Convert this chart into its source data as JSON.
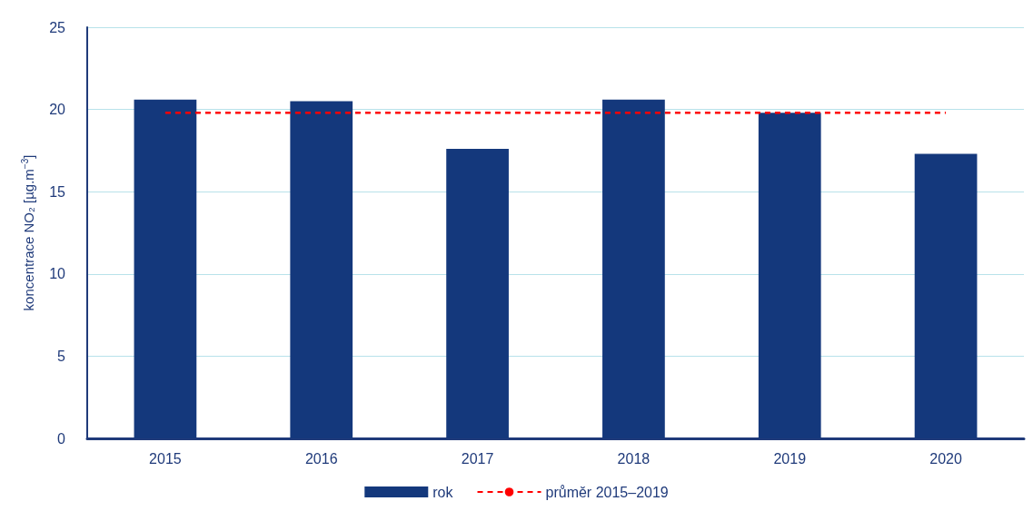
{
  "chart_data": {
    "type": "bar",
    "ylabel": "koncentrace NO₂ [µg.m$^{−3}$]",
    "categories": [
      "2015",
      "2016",
      "2017",
      "2018",
      "2019",
      "2020"
    ],
    "series": [
      {
        "name": "rok",
        "color": "#14387c",
        "values": [
          20.6,
          20.5,
          17.6,
          20.6,
          19.8,
          17.3
        ]
      },
      {
        "name": "průměr 2015–2019",
        "type": "line",
        "color": "#ff0000",
        "line_style": "dashed",
        "marker": "none",
        "values": [
          19.8,
          19.8,
          19.8,
          19.8,
          19.8,
          19.8
        ]
      }
    ],
    "ylim": [
      0,
      25
    ],
    "yticks": [
      0,
      5,
      10,
      15,
      20,
      25
    ],
    "grid": "y",
    "legend": "bottom"
  }
}
